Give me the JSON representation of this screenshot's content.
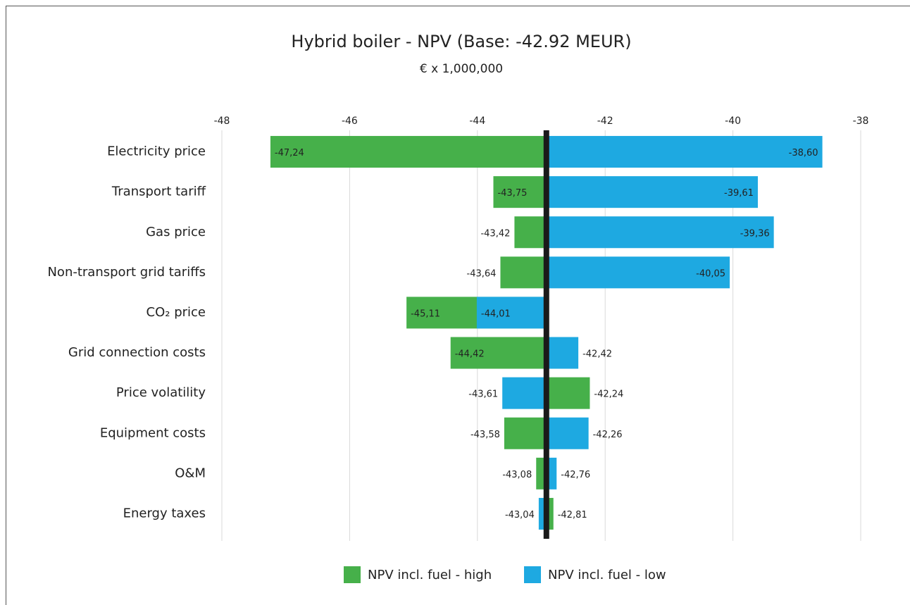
{
  "chart_data": {
    "type": "tornado",
    "title": "Hybrid boiler - NPV (Base: -42.92 MEUR)",
    "subtitle": "€ x 1,000,000",
    "base": -42.92,
    "categories": [
      "Electricity price",
      "Transport tariff",
      "Gas price",
      "Non-transport grid tariffs",
      "CO₂ price",
      "Grid connection costs",
      "Price volatility",
      "Equipment costs",
      "O&M",
      "Energy taxes"
    ],
    "series": [
      {
        "name": "NPV incl. fuel - high",
        "color": "#46b04a",
        "values": [
          -47.24,
          -43.75,
          -43.42,
          -43.64,
          -45.11,
          -44.42,
          -42.24,
          -43.58,
          -43.08,
          -42.81
        ],
        "value_labels": [
          "-47,24",
          "-43,75",
          "-43,42",
          "-43,64",
          "-45,11",
          "-44,42",
          "-42,24",
          "-43,58",
          "-43,08",
          "-42,81"
        ]
      },
      {
        "name": "NPV incl. fuel - low",
        "color": "#1ea9e1",
        "values": [
          -38.6,
          -39.61,
          -39.36,
          -40.05,
          -44.01,
          -42.42,
          -43.61,
          -42.26,
          -42.76,
          -43.04
        ],
        "value_labels": [
          "-38,60",
          "-39,61",
          "-39,36",
          "-40,05",
          "-44,01",
          "-42,42",
          "-43,61",
          "-42,26",
          "-42,76",
          "-43,04"
        ]
      }
    ],
    "xlim": [
      -48,
      -38
    ],
    "xticks": [
      -48,
      -46,
      -44,
      -42,
      -40,
      -38
    ],
    "grid": true
  }
}
